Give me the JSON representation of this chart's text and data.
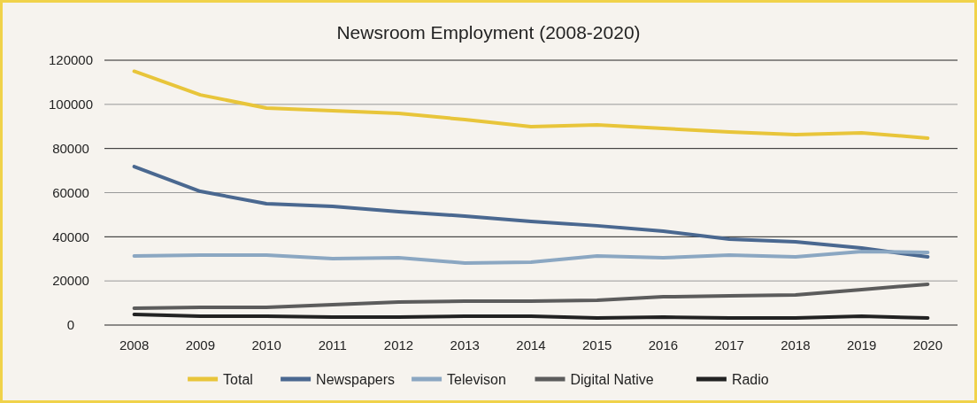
{
  "chart_data": {
    "type": "line",
    "title": "Newsroom Employment (2008-2020)",
    "categories": [
      "2008",
      "2009",
      "2010",
      "2011",
      "2012",
      "2013",
      "2014",
      "2015",
      "2016",
      "2017",
      "2018",
      "2019",
      "2020"
    ],
    "series": [
      {
        "name": "Total",
        "color": "#e8c53a",
        "values": [
          115000,
          104300,
          98300,
          97100,
          95900,
          93100,
          89900,
          90700,
          89100,
          87500,
          86300,
          87100,
          84700
        ]
      },
      {
        "name": "Newspapers",
        "color": "#4a6890",
        "values": [
          71800,
          60600,
          55000,
          53800,
          51400,
          49400,
          47000,
          45000,
          42500,
          38900,
          37700,
          34900,
          30900
        ]
      },
      {
        "name": "Televison",
        "color": "#8ba7c2",
        "values": [
          31300,
          31700,
          31700,
          30100,
          30500,
          28100,
          28500,
          31300,
          30500,
          31700,
          30900,
          33300,
          32900
        ]
      },
      {
        "name": "Digital Native",
        "color": "#5c5c5c",
        "values": [
          7600,
          8000,
          8000,
          9200,
          10400,
          10800,
          10800,
          11200,
          12800,
          13200,
          13600,
          16100,
          18500
        ]
      },
      {
        "name": "Radio",
        "color": "#222222",
        "values": [
          4800,
          4000,
          4000,
          3600,
          3600,
          4000,
          4000,
          3200,
          3600,
          3200,
          3200,
          4000,
          3200
        ]
      }
    ],
    "ylim": [
      0,
      120000
    ],
    "yticks": [
      0,
      20000,
      40000,
      60000,
      80000,
      100000,
      120000
    ],
    "grid": "y",
    "legend": "bottom",
    "marker": "none",
    "line_style": "solid"
  }
}
